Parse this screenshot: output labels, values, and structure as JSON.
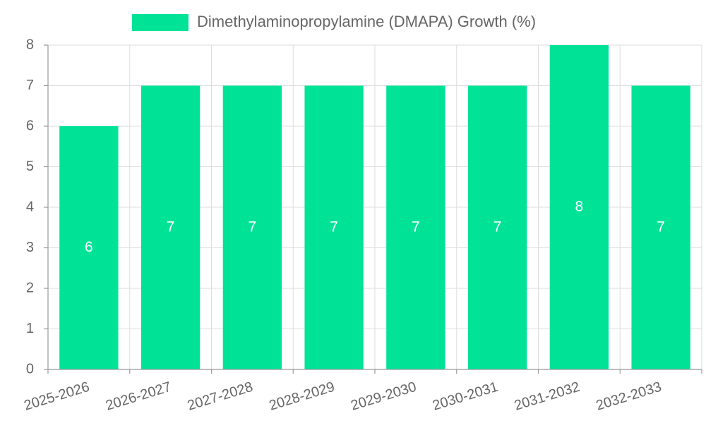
{
  "chart_data": {
    "type": "bar",
    "title": "",
    "xlabel": "",
    "ylabel": "",
    "categories": [
      "2025-2026",
      "2026-2027",
      "2027-2028",
      "2028-2029",
      "2029-2030",
      "2030-2031",
      "2031-2032",
      "2032-2033"
    ],
    "series": [
      {
        "name": "Dimethylaminopropylamine (DMAPA) Growth (%)",
        "color": "#00e396",
        "values": [
          6,
          7,
          7,
          7,
          7,
          7,
          8,
          7
        ]
      }
    ],
    "data_labels": [
      "6",
      "7",
      "7",
      "7",
      "7",
      "7",
      "8",
      "7"
    ],
    "ylim": [
      0,
      8
    ],
    "yticks": [
      "0",
      "1",
      "2",
      "3",
      "4",
      "5",
      "6",
      "7",
      "8"
    ],
    "grid": true,
    "legend_position": "top-center"
  }
}
